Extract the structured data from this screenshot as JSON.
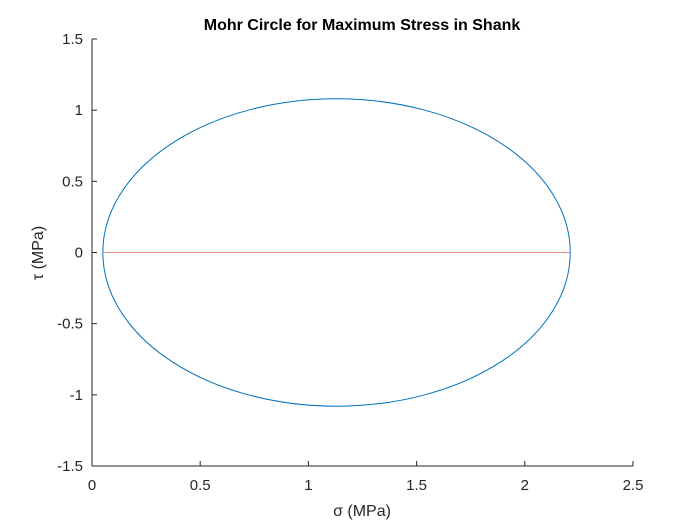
{
  "chart_data": {
    "type": "line",
    "title": "Mohr Circle for Maximum Stress in Shank",
    "xlabel": "σ (MPa)",
    "ylabel": "τ (MPa)",
    "xlim": [
      0,
      2.5
    ],
    "ylim": [
      -1.5,
      1.5
    ],
    "xticks": [
      {
        "value": 0,
        "label": "0"
      },
      {
        "value": 0.5,
        "label": "0.5"
      },
      {
        "value": 1,
        "label": "1"
      },
      {
        "value": 1.5,
        "label": "1.5"
      },
      {
        "value": 2,
        "label": "2"
      },
      {
        "value": 2.5,
        "label": "2.5"
      }
    ],
    "yticks": [
      {
        "value": -1.5,
        "label": "-1.5"
      },
      {
        "value": -1,
        "label": "-1"
      },
      {
        "value": -0.5,
        "label": "-0.5"
      },
      {
        "value": 0,
        "label": "0"
      },
      {
        "value": 0.5,
        "label": "0.5"
      },
      {
        "value": 1,
        "label": "1"
      },
      {
        "value": 1.5,
        "label": "1.5"
      }
    ],
    "grid": false,
    "series": [
      {
        "kind": "circle",
        "center": [
          1.13,
          0
        ],
        "radius": 1.08,
        "color": "#0072BD"
      },
      {
        "kind": "segment",
        "x": [
          0.05,
          2.21
        ],
        "y": [
          0,
          0
        ],
        "color": "#E8858D"
      }
    ]
  }
}
